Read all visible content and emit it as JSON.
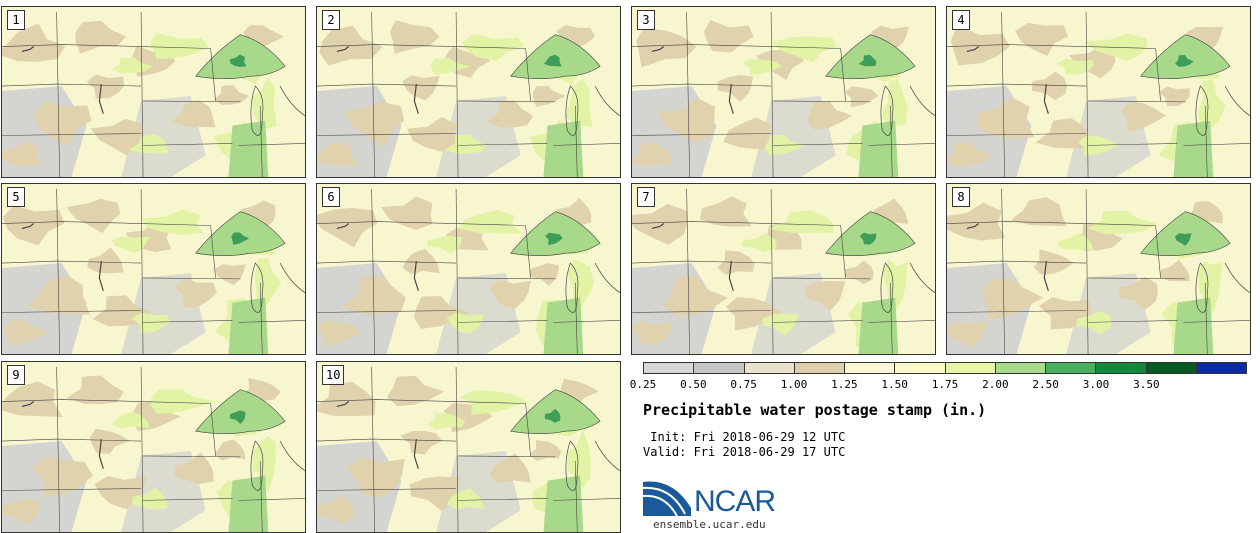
{
  "panels": [
    {
      "label": "1"
    },
    {
      "label": "2"
    },
    {
      "label": "3"
    },
    {
      "label": "4"
    },
    {
      "label": "5"
    },
    {
      "label": "6"
    },
    {
      "label": "7"
    },
    {
      "label": "8"
    },
    {
      "label": "9"
    },
    {
      "label": "10"
    }
  ],
  "colorbar": {
    "colors": [
      "#d8d8d8",
      "#c6c6c6",
      "#e8e2cc",
      "#dccfaa",
      "#f8f6d4",
      "#fafac8",
      "#e6f5a8",
      "#a8dc8a",
      "#4ab060",
      "#108a3a",
      "#075a22",
      "#0a2aa8"
    ],
    "tick_labels": [
      "0.25",
      "0.50",
      "0.75",
      "1.00",
      "1.25",
      "1.50",
      "1.75",
      "2.00",
      "2.50",
      "3.00",
      "3.50"
    ]
  },
  "title": "Precipitable water postage stamp (in.)",
  "init_text": " Init: Fri 2018-06-29 12 UTC",
  "valid_text": "Valid: Fri 2018-06-29 17 UTC",
  "logo": {
    "name": "NCAR",
    "url": "ensemble.ucar.edu"
  },
  "map_colors": {
    "gray": "#d4d4d0",
    "tan": "#dfd2ad",
    "cream": "#f8f6cf",
    "lightgreen": "#e3f3a6",
    "green": "#a8d98a",
    "darkgreen": "#3e9e58",
    "border": "#444444"
  }
}
